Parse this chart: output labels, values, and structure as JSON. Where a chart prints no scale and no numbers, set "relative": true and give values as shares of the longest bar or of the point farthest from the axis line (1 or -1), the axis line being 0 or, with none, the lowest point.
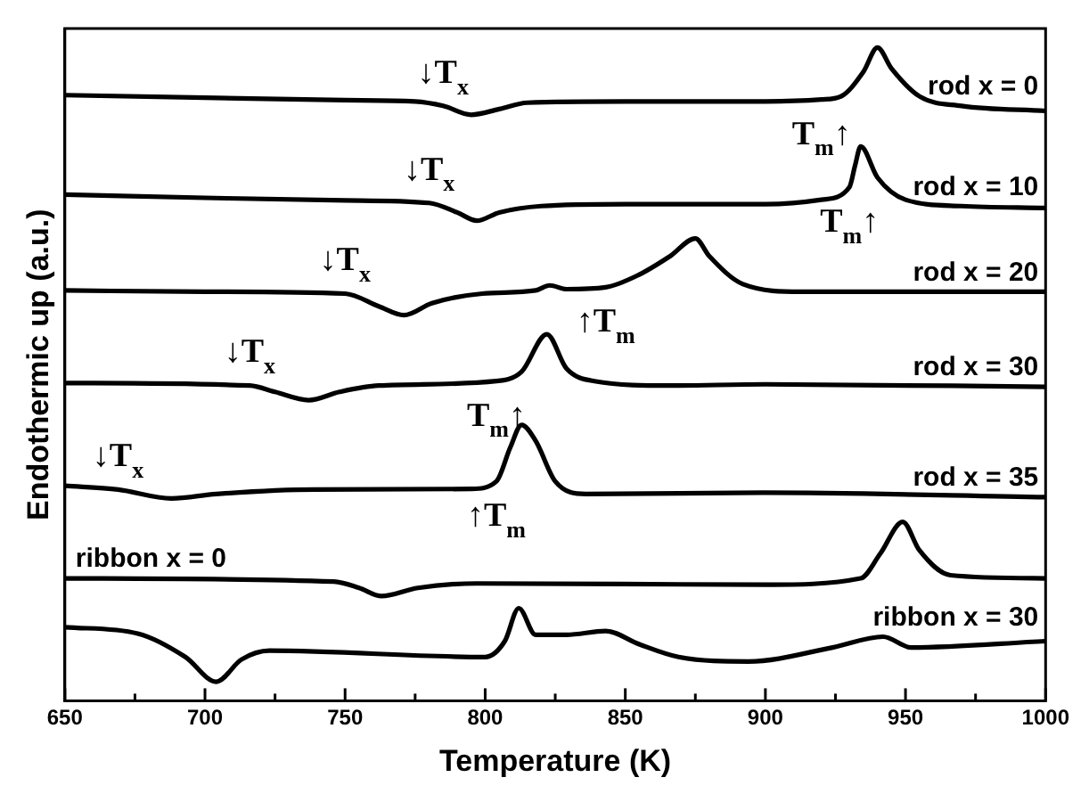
{
  "chart_data": {
    "type": "line",
    "relative": true,
    "xlabel": "Temperature (K)",
    "ylabel": "Endothermic up (a.u.)",
    "xlim": [
      650,
      1000
    ],
    "xticks": [
      650,
      {
        "value": 675,
        "label": null
      },
      700,
      {
        "value": 725,
        "label": null
      },
      750,
      {
        "value": 775,
        "label": null
      },
      800,
      {
        "value": 825,
        "label": null
      },
      850,
      {
        "value": 875,
        "label": null
      },
      900,
      {
        "value": 925,
        "label": null
      },
      950,
      {
        "value": 975,
        "label": null
      },
      1000
    ],
    "series": [
      {
        "name": "rod x = 0",
        "color": "#000000",
        "x": [
          650,
          700,
          750,
          775,
          785,
          795,
          805,
          815,
          850,
          900,
          920,
          927,
          935,
          940,
          945,
          955,
          970,
          1000
        ],
        "values": [
          0.925,
          0.921,
          0.917,
          0.915,
          0.908,
          0.894,
          0.903,
          0.913,
          0.915,
          0.915,
          0.918,
          0.923,
          0.962,
          1,
          0.967,
          0.923,
          0.908,
          0.9
        ]
      },
      {
        "name": "rod x = 10",
        "color": "#000000",
        "x": [
          650,
          700,
          750,
          780,
          790,
          797,
          805,
          820,
          850,
          900,
          920,
          930,
          932,
          934,
          940,
          950,
          970,
          1000
        ],
        "values": [
          0.768,
          0.763,
          0.759,
          0.755,
          0.74,
          0.727,
          0.74,
          0.75,
          0.753,
          0.753,
          0.76,
          0.78,
          0.814,
          0.844,
          0.795,
          0.76,
          0.75,
          0.747
        ]
      },
      {
        "name": "rod x = 20",
        "color": "#000000",
        "x": [
          650,
          700,
          750,
          762,
          771,
          781,
          799,
          818,
          823,
          829,
          843,
          855,
          866,
          875,
          880,
          892,
          913,
          1000
        ],
        "values": [
          0.617,
          0.615,
          0.612,
          0.592,
          0.578,
          0.597,
          0.612,
          0.617,
          0.625,
          0.619,
          0.622,
          0.642,
          0.671,
          0.699,
          0.671,
          0.627,
          0.615,
          0.615
        ]
      },
      {
        "name": "rod x = 30",
        "color": "#000000",
        "x": [
          650,
          716,
          725,
          737,
          748,
          762,
          804,
          813,
          822,
          829,
          839,
          866,
          900,
          1000
        ],
        "values": [
          0.471,
          0.467,
          0.457,
          0.444,
          0.457,
          0.467,
          0.474,
          0.489,
          0.548,
          0.494,
          0.474,
          0.467,
          0.469,
          0.465
        ]
      },
      {
        "name": "rod x = 35",
        "color": "#000000",
        "x": [
          650,
          669,
          688,
          704,
          739,
          795,
          804,
          809,
          813,
          818,
          825,
          836,
          900,
          1000
        ],
        "values": [
          0.309,
          0.303,
          0.289,
          0.296,
          0.303,
          0.304,
          0.316,
          0.37,
          0.405,
          0.38,
          0.316,
          0.296,
          0.298,
          0.291
        ]
      },
      {
        "name": "ribbon x = 0",
        "color": "#000000",
        "x": [
          650,
          746,
          755,
          763,
          776,
          797,
          900,
          934,
          941,
          949,
          955,
          966,
          1000
        ],
        "values": [
          0.163,
          0.158,
          0.148,
          0.135,
          0.148,
          0.155,
          0.153,
          0.163,
          0.202,
          0.252,
          0.207,
          0.168,
          0.163
        ]
      },
      {
        "name": "ribbon x = 30",
        "color": "#000000",
        "x": [
          650,
          676,
          693,
          704,
          713,
          723,
          800,
          807,
          812,
          818,
          829,
          843,
          855,
          869,
          894,
          924,
          942,
          952,
          1000
        ],
        "values": [
          0.086,
          0.076,
          0.039,
          0,
          0.035,
          0.049,
          0.039,
          0.064,
          0.116,
          0.074,
          0.074,
          0.08,
          0.059,
          0.039,
          0.032,
          0.054,
          0.071,
          0.054,
          0.064
        ]
      }
    ],
    "annotations": [
      {
        "text": "↓T$_{x}$",
        "x": 785,
        "y": 0.908
      },
      {
        "text": "T$_{m}$↑",
        "x": 920,
        "y": 0.918
      },
      {
        "text": "↓T$_{x}$",
        "x": 780,
        "y": 0.755
      },
      {
        "text": "T$_{m}$↑",
        "x": 930,
        "y": 0.78
      },
      {
        "text": "↓T$_{x}$",
        "x": 750,
        "y": 0.612
      },
      {
        "text": "↑T$_{m}$",
        "x": 843,
        "y": 0.622
      },
      {
        "text": "↓T$_{x}$",
        "x": 716,
        "y": 0.467
      },
      {
        "text": "T$_{m}$↑",
        "x": 804,
        "y": 0.474
      },
      {
        "text": "↓T$_{x}$",
        "x": 669,
        "y": 0.303
      },
      {
        "text": "↑T$_{m}$",
        "x": 804,
        "y": 0.316
      }
    ]
  }
}
